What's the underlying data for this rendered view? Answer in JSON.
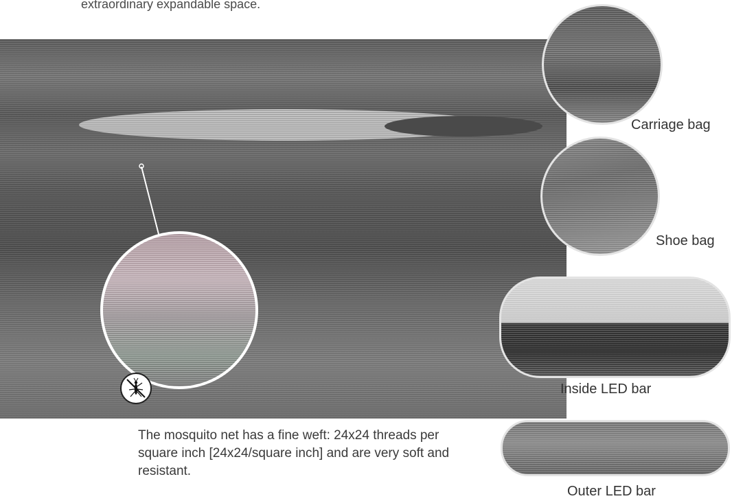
{
  "intro": {
    "text": "extraordinary expandable space."
  },
  "net": {
    "caption": "The mosquito net has a fine weft: 24x24 threads per square inch [24x24/square inch] and are very soft and resistant.",
    "icon": "mosquito-icon"
  },
  "details": [
    {
      "label": "Carriage bag"
    },
    {
      "label": "Shoe bag"
    },
    {
      "label": "Inside LED bar"
    },
    {
      "label": "Outer LED bar"
    }
  ]
}
